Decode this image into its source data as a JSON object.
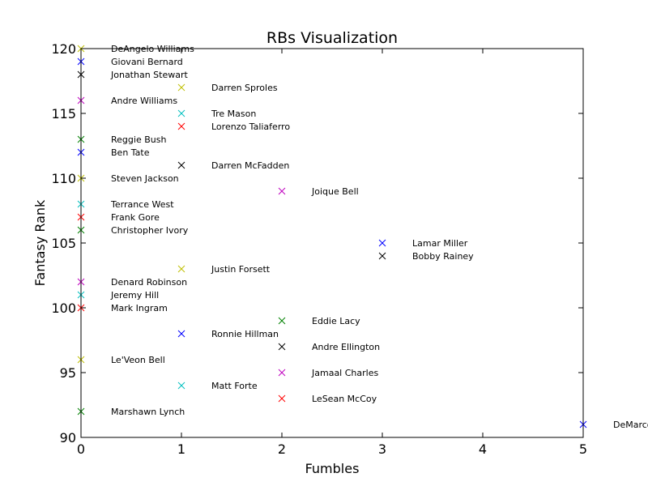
{
  "chart_data": {
    "type": "scatter",
    "title": "RBs Visualization",
    "xlabel": "Fumbles",
    "ylabel": "Fantasy Rank",
    "xlim": [
      0,
      5
    ],
    "ylim": [
      90,
      120
    ],
    "xticks": [
      "0",
      "1",
      "2",
      "3",
      "4",
      "5"
    ],
    "yticks": [
      "90",
      "95",
      "100",
      "105",
      "110",
      "115",
      "120"
    ],
    "grid": false,
    "marker": "x",
    "colors": [
      "#0000ff",
      "#008000",
      "#ff0000",
      "#00bfbf",
      "#bf00bf",
      "#bfbf00",
      "#000000"
    ],
    "points": [
      {
        "name": "DeAngelo Williams",
        "x": 0,
        "y": 120,
        "color": "#bfbf00"
      },
      {
        "name": "Giovani Bernard",
        "x": 0,
        "y": 119,
        "color": "#0000ff"
      },
      {
        "name": "Jonathan Stewart",
        "x": 0,
        "y": 118,
        "color": "#000000"
      },
      {
        "name": "Darren Sproles",
        "x": 1,
        "y": 117,
        "color": "#bfbf00"
      },
      {
        "name": "Andre Williams",
        "x": 0,
        "y": 116,
        "color": "#bf00bf"
      },
      {
        "name": "Tre Mason",
        "x": 1,
        "y": 115,
        "color": "#00bfbf"
      },
      {
        "name": "Lorenzo Taliaferro",
        "x": 1,
        "y": 114,
        "color": "#ff0000"
      },
      {
        "name": "Reggie Bush",
        "x": 0,
        "y": 113,
        "color": "#008000"
      },
      {
        "name": "Ben Tate",
        "x": 0,
        "y": 112,
        "color": "#0000ff"
      },
      {
        "name": "Darren McFadden",
        "x": 1,
        "y": 111,
        "color": "#000000"
      },
      {
        "name": "Steven Jackson",
        "x": 0,
        "y": 110,
        "color": "#bfbf00"
      },
      {
        "name": "Joique Bell",
        "x": 2,
        "y": 109,
        "color": "#bf00bf"
      },
      {
        "name": "Terrance West",
        "x": 0,
        "y": 108,
        "color": "#00bfbf"
      },
      {
        "name": "Frank Gore",
        "x": 0,
        "y": 107,
        "color": "#ff0000"
      },
      {
        "name": "Christopher Ivory",
        "x": 0,
        "y": 106,
        "color": "#008000"
      },
      {
        "name": "Lamar Miller",
        "x": 3,
        "y": 105,
        "color": "#0000ff"
      },
      {
        "name": "Bobby Rainey",
        "x": 3,
        "y": 104,
        "color": "#000000"
      },
      {
        "name": "Justin Forsett",
        "x": 1,
        "y": 103,
        "color": "#bfbf00"
      },
      {
        "name": "Denard Robinson",
        "x": 0,
        "y": 102,
        "color": "#bf00bf"
      },
      {
        "name": "Jeremy Hill",
        "x": 0,
        "y": 101,
        "color": "#00bfbf"
      },
      {
        "name": "Mark Ingram",
        "x": 0,
        "y": 100,
        "color": "#ff0000"
      },
      {
        "name": "Eddie Lacy",
        "x": 2,
        "y": 99,
        "color": "#008000"
      },
      {
        "name": "Ronnie Hillman",
        "x": 1,
        "y": 98,
        "color": "#0000ff"
      },
      {
        "name": "Andre Ellington",
        "x": 2,
        "y": 97,
        "color": "#000000"
      },
      {
        "name": "Le'Veon Bell",
        "x": 0,
        "y": 96,
        "color": "#bfbf00"
      },
      {
        "name": "Jamaal Charles",
        "x": 2,
        "y": 95,
        "color": "#bf00bf"
      },
      {
        "name": "Matt Forte",
        "x": 1,
        "y": 94,
        "color": "#00bfbf"
      },
      {
        "name": "LeSean McCoy",
        "x": 2,
        "y": 93,
        "color": "#ff0000"
      },
      {
        "name": "Marshawn Lynch",
        "x": 0,
        "y": 92,
        "color": "#008000"
      },
      {
        "name": "DeMarco Murray",
        "x": 5,
        "y": 91,
        "color": "#0000ff"
      }
    ]
  }
}
